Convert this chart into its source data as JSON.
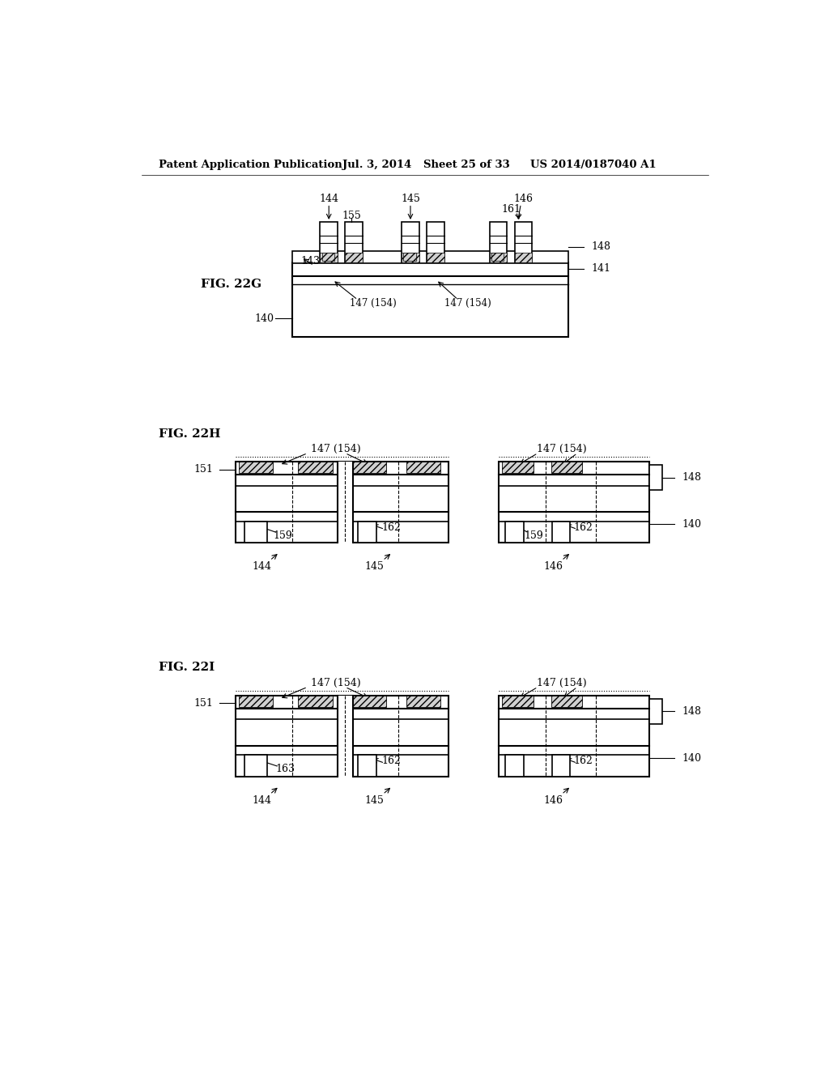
{
  "background_color": "#ffffff",
  "header_text": "Patent Application Publication",
  "header_date": "Jul. 3, 2014",
  "header_sheet": "Sheet 25 of 33",
  "header_patent": "US 2014/0187040 A1",
  "fig22g_label": "FIG. 22G",
  "fig22h_label": "FIG. 22H",
  "fig22i_label": "FIG. 22I"
}
